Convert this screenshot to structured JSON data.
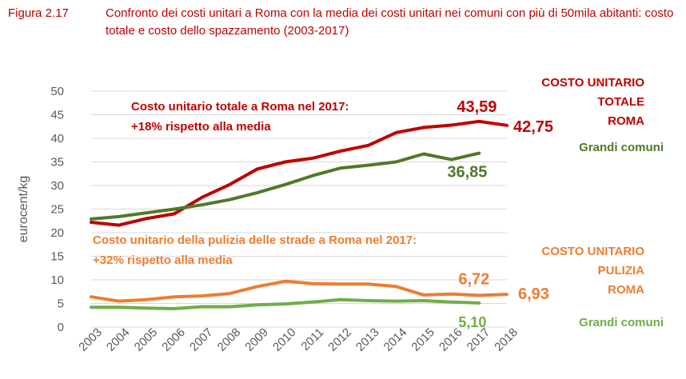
{
  "figure": {
    "label": "Figura 2.17",
    "title": "Confronto dei costi unitari a Roma con la media dei costi unitari nei comuni con più di 50mila abitanti: costo totale e costo dello spazzamento (2003-2017)"
  },
  "chart_data": {
    "type": "line",
    "ylabel": "eurocent/kg",
    "xlabel": "",
    "ylim": [
      0,
      50
    ],
    "y_ticks": [
      0,
      5,
      10,
      15,
      20,
      25,
      30,
      35,
      40,
      45,
      50
    ],
    "grid": true,
    "categories": [
      "2003",
      "2004",
      "2005",
      "2006",
      "2007",
      "2008",
      "2009",
      "2010",
      "2011",
      "2012",
      "2013",
      "2014",
      "2015",
      "2016",
      "2017",
      "2018"
    ],
    "series": [
      {
        "key": "roma_total",
        "color": "#c00000",
        "values": [
          22.2,
          21.6,
          23.0,
          24.0,
          27.5,
          30.2,
          33.5,
          35.0,
          35.8,
          37.3,
          38.5,
          41.2,
          42.3,
          42.8,
          43.59,
          42.75
        ]
      },
      {
        "key": "grandi_total",
        "color": "#4e7a27",
        "values": [
          22.9,
          23.4,
          24.2,
          25.0,
          25.9,
          27.0,
          28.5,
          30.2,
          32.1,
          33.7,
          34.3,
          35.0,
          36.7,
          35.5,
          36.85,
          null
        ]
      },
      {
        "key": "roma_pulizia",
        "color": "#ed7d31",
        "values": [
          6.4,
          5.5,
          5.8,
          6.4,
          6.6,
          7.1,
          8.6,
          9.7,
          9.2,
          9.1,
          9.1,
          8.6,
          6.8,
          7.0,
          6.72,
          6.93
        ]
      },
      {
        "key": "grandi_pulizia",
        "color": "#70ad47",
        "values": [
          4.2,
          4.2,
          4.0,
          3.9,
          4.3,
          4.3,
          4.7,
          4.9,
          5.3,
          5.8,
          5.6,
          5.5,
          5.6,
          5.3,
          5.1,
          null
        ]
      }
    ],
    "data_labels": [
      {
        "key": "lbl_4359",
        "text": "43,59",
        "series": "roma_total",
        "index": 14,
        "color": "#c00000"
      },
      {
        "key": "lbl_4275",
        "text": "42,75",
        "series": "roma_total",
        "index": 15,
        "color": "#c00000"
      },
      {
        "key": "lbl_3685",
        "text": "36,85",
        "series": "grandi_total",
        "index": 14,
        "color": "#4e7a27"
      },
      {
        "key": "lbl_672",
        "text": "6,72",
        "series": "roma_pulizia",
        "index": 14,
        "color": "#ed7d31"
      },
      {
        "key": "lbl_693",
        "text": "6,93",
        "series": "roma_pulizia",
        "index": 15,
        "color": "#ed7d31"
      },
      {
        "key": "lbl_510",
        "text": "5,10",
        "series": "grandi_pulizia",
        "index": 14,
        "color": "#70ad47"
      }
    ],
    "annotations": [
      {
        "key": "ann_total_1",
        "text": "Costo unitario totale a Roma nel 2017:",
        "color": "#c00000"
      },
      {
        "key": "ann_total_2",
        "text": "+18% rispetto alla media",
        "color": "#c00000"
      },
      {
        "key": "ann_pul_1",
        "text": "Costo unitario della pulizia delle strade a Roma nel 2017:",
        "color": "#ed7d31"
      },
      {
        "key": "ann_pul_2",
        "text": "+32% rispetto alla media",
        "color": "#ed7d31"
      }
    ],
    "legend": [
      {
        "key": "leg_roma_total",
        "lines": [
          "COSTO UNITARIO",
          "TOTALE",
          "ROMA"
        ],
        "color": "#c00000"
      },
      {
        "key": "leg_grandi_total",
        "lines": [
          "Grandi comuni"
        ],
        "color": "#4e7a27"
      },
      {
        "key": "leg_roma_pul",
        "lines": [
          "COSTO UNITARIO",
          "PULIZIA",
          "ROMA"
        ],
        "color": "#ed7d31"
      },
      {
        "key": "leg_grandi_pul",
        "lines": [
          "Grandi comuni"
        ],
        "color": "#70ad47"
      }
    ]
  }
}
